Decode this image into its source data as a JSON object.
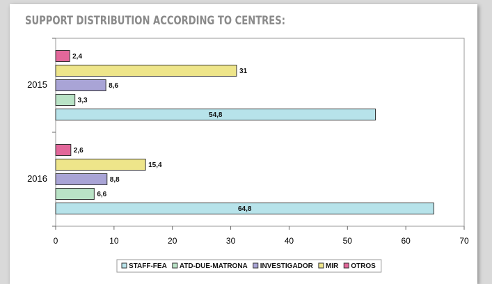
{
  "chart_data": {
    "type": "hbar",
    "title": "SUPPORT DISTRIBUTION ACCORDING TO CENTRES:",
    "categories": [
      "2015",
      "2016"
    ],
    "series": [
      {
        "name": "STAFF-FEA",
        "color": "#b7e3ea",
        "values": [
          54.8,
          64.8
        ],
        "value_labels": [
          "54,8",
          "64,8"
        ]
      },
      {
        "name": "ATD-DUE-MATRONA",
        "color": "#b9e3c6",
        "values": [
          3.3,
          6.6
        ],
        "value_labels": [
          "3,3",
          "6,6"
        ]
      },
      {
        "name": "INVESTIGADOR",
        "color": "#a9a4d6",
        "values": [
          8.6,
          8.8
        ],
        "value_labels": [
          "8,6",
          "8,8"
        ]
      },
      {
        "name": "MIR",
        "color": "#eee58a",
        "values": [
          31,
          15.4
        ],
        "value_labels": [
          "31",
          "15,4"
        ]
      },
      {
        "name": "OTROS",
        "color": "#e2679a",
        "values": [
          2.4,
          2.6
        ],
        "value_labels": [
          "2,4",
          "2,6"
        ]
      }
    ],
    "xlim": [
      0,
      70
    ],
    "xticks": [
      0,
      10,
      20,
      30,
      40,
      50,
      60,
      70
    ]
  }
}
